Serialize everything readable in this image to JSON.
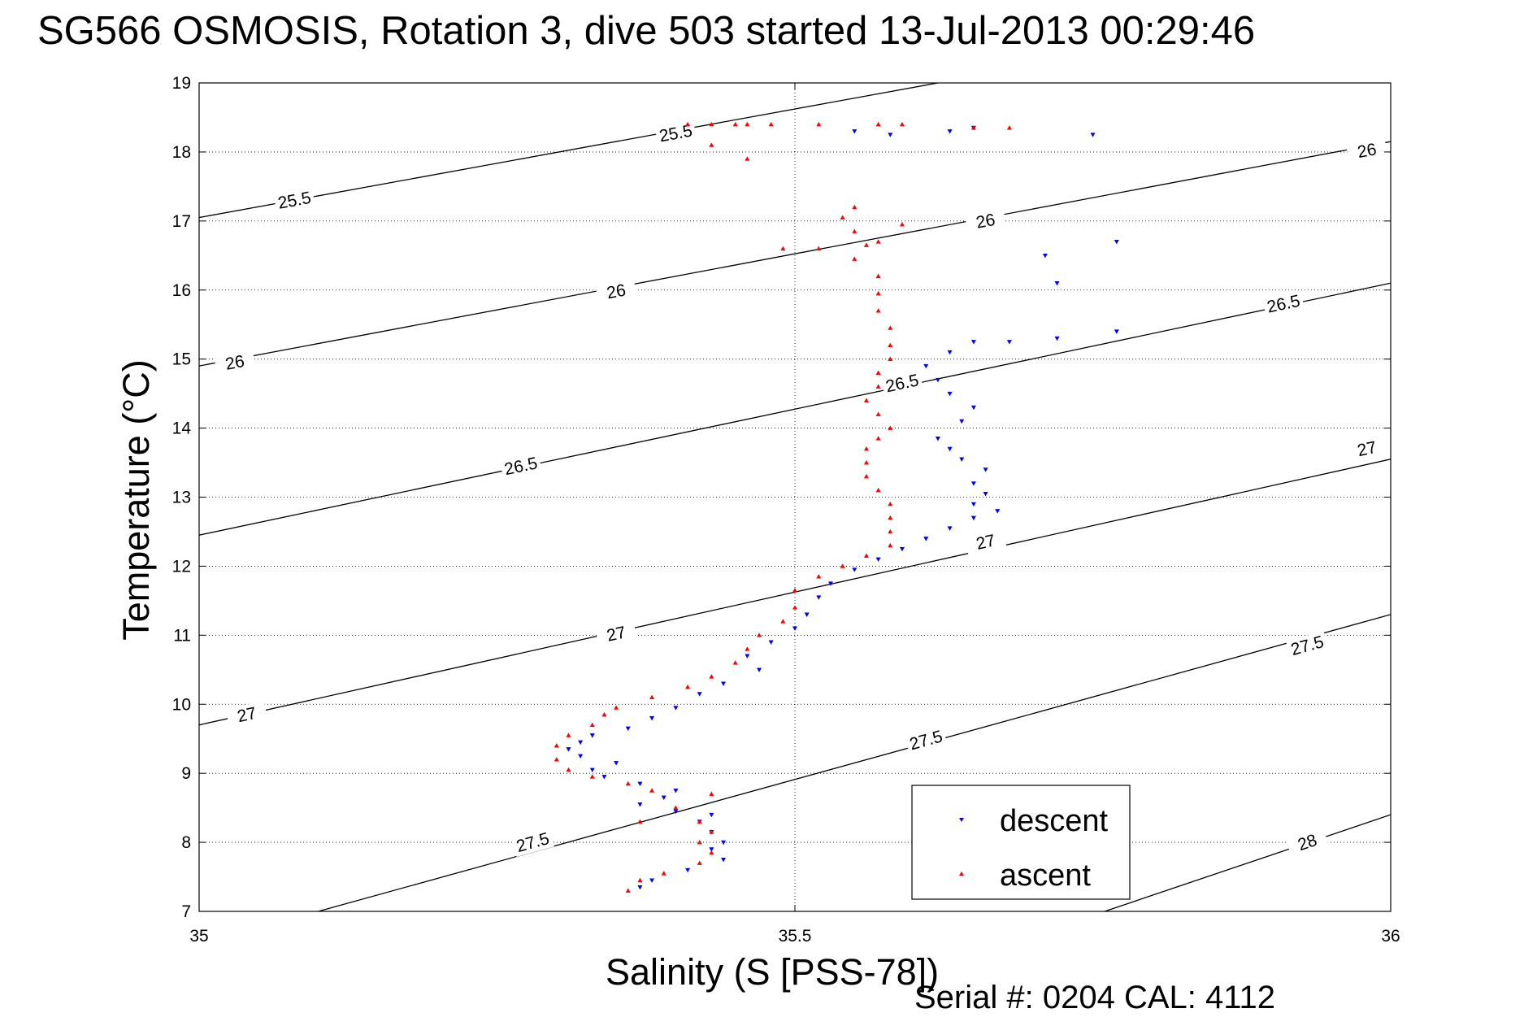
{
  "title": "SG566 OSMOSIS, Rotation 3, dive 503 started 13-Jul-2013 00:29:46",
  "footer": "Serial #: 0204  CAL: 4112",
  "chart_data": {
    "type": "scatter",
    "title": "SG566 OSMOSIS, Rotation 3, dive 503 started 13-Jul-2013 00:29:46",
    "xlabel": "Salinity (S [PSS-78])",
    "ylabel": "Temperature (°C)",
    "xlim": [
      35,
      36
    ],
    "ylim": [
      7,
      19
    ],
    "xticks": [
      "35",
      "35.5",
      "36"
    ],
    "yticks": [
      "7",
      "8",
      "9",
      "10",
      "11",
      "12",
      "13",
      "14",
      "15",
      "16",
      "17",
      "18",
      "19"
    ],
    "grid": true,
    "legend_position": "bottom-right",
    "isopycnals": [
      {
        "label": "25.5",
        "points": [
          [
            35.0,
            17.05
          ],
          [
            35.62,
            19.0
          ]
        ],
        "labels_at": [
          [
            35.08,
            17.3
          ],
          [
            35.4,
            18.27
          ]
        ]
      },
      {
        "label": "26",
        "points": [
          [
            35.0,
            14.9
          ],
          [
            36.0,
            18.15
          ]
        ],
        "labels_at": [
          [
            35.03,
            14.95
          ],
          [
            35.35,
            15.98
          ],
          [
            35.66,
            17.0
          ],
          [
            35.98,
            18.02
          ]
        ]
      },
      {
        "label": "26.5",
        "points": [
          [
            35.0,
            12.45
          ],
          [
            36.0,
            16.1
          ]
        ],
        "labels_at": [
          [
            35.27,
            13.45
          ],
          [
            35.59,
            14.65
          ],
          [
            35.91,
            15.8
          ]
        ]
      },
      {
        "label": "27",
        "points": [
          [
            35.0,
            9.7
          ],
          [
            36.0,
            13.55
          ]
        ],
        "labels_at": [
          [
            35.04,
            9.85
          ],
          [
            35.35,
            11.02
          ],
          [
            35.66,
            12.35
          ],
          [
            35.98,
            13.7
          ]
        ]
      },
      {
        "label": "27.5",
        "points": [
          [
            35.1,
            7.0
          ],
          [
            36.0,
            11.3
          ]
        ],
        "labels_at": [
          [
            35.28,
            8.0
          ],
          [
            35.61,
            9.48
          ],
          [
            35.93,
            10.85
          ]
        ]
      },
      {
        "label": "28",
        "points": [
          [
            35.76,
            7.0
          ],
          [
            36.0,
            8.4
          ]
        ],
        "labels_at": [
          [
            35.93,
            8.0
          ]
        ]
      }
    ],
    "series": [
      {
        "name": "descent",
        "color": "#0000ff",
        "marker": "triangle-down",
        "points": [
          [
            35.37,
            7.35
          ],
          [
            35.38,
            7.45
          ],
          [
            35.41,
            7.6
          ],
          [
            35.44,
            7.75
          ],
          [
            35.43,
            7.9
          ],
          [
            35.44,
            8.0
          ],
          [
            35.43,
            8.15
          ],
          [
            35.42,
            8.3
          ],
          [
            35.43,
            8.4
          ],
          [
            35.4,
            8.45
          ],
          [
            35.37,
            8.55
          ],
          [
            35.39,
            8.65
          ],
          [
            35.4,
            8.75
          ],
          [
            35.37,
            8.85
          ],
          [
            35.34,
            8.95
          ],
          [
            35.33,
            9.05
          ],
          [
            35.35,
            9.15
          ],
          [
            35.32,
            9.25
          ],
          [
            35.31,
            9.35
          ],
          [
            35.32,
            9.45
          ],
          [
            35.33,
            9.55
          ],
          [
            35.36,
            9.65
          ],
          [
            35.38,
            9.8
          ],
          [
            35.4,
            9.95
          ],
          [
            35.42,
            10.15
          ],
          [
            35.44,
            10.3
          ],
          [
            35.47,
            10.5
          ],
          [
            35.46,
            10.7
          ],
          [
            35.48,
            10.9
          ],
          [
            35.5,
            11.1
          ],
          [
            35.51,
            11.3
          ],
          [
            35.52,
            11.55
          ],
          [
            35.53,
            11.75
          ],
          [
            35.55,
            11.95
          ],
          [
            35.57,
            12.1
          ],
          [
            35.59,
            12.25
          ],
          [
            35.61,
            12.4
          ],
          [
            35.63,
            12.55
          ],
          [
            35.65,
            12.7
          ],
          [
            35.67,
            12.8
          ],
          [
            35.65,
            12.9
          ],
          [
            35.66,
            13.05
          ],
          [
            35.65,
            13.2
          ],
          [
            35.66,
            13.4
          ],
          [
            35.64,
            13.55
          ],
          [
            35.63,
            13.7
          ],
          [
            35.62,
            13.85
          ],
          [
            35.64,
            14.1
          ],
          [
            35.65,
            14.3
          ],
          [
            35.63,
            14.5
          ],
          [
            35.62,
            14.7
          ],
          [
            35.61,
            14.9
          ],
          [
            35.63,
            15.1
          ],
          [
            35.65,
            15.25
          ],
          [
            35.68,
            15.25
          ],
          [
            35.72,
            15.3
          ],
          [
            35.77,
            15.4
          ],
          [
            35.72,
            16.1
          ],
          [
            35.71,
            16.5
          ],
          [
            35.77,
            16.7
          ],
          [
            35.58,
            18.25
          ],
          [
            35.63,
            18.3
          ],
          [
            35.65,
            18.35
          ],
          [
            35.75,
            18.25
          ],
          [
            35.55,
            18.3
          ]
        ]
      },
      {
        "name": "ascent",
        "color": "#ff0000",
        "marker": "triangle-up",
        "points": [
          [
            35.36,
            7.3
          ],
          [
            35.37,
            7.45
          ],
          [
            35.39,
            7.55
          ],
          [
            35.42,
            7.7
          ],
          [
            35.43,
            7.85
          ],
          [
            35.42,
            8.0
          ],
          [
            35.43,
            8.15
          ],
          [
            35.42,
            8.3
          ],
          [
            35.37,
            8.3
          ],
          [
            35.4,
            8.5
          ],
          [
            35.43,
            8.7
          ],
          [
            35.38,
            8.75
          ],
          [
            35.36,
            8.85
          ],
          [
            35.33,
            8.95
          ],
          [
            35.31,
            9.05
          ],
          [
            35.3,
            9.2
          ],
          [
            35.3,
            9.4
          ],
          [
            35.31,
            9.55
          ],
          [
            35.33,
            9.7
          ],
          [
            35.34,
            9.85
          ],
          [
            35.35,
            9.95
          ],
          [
            35.38,
            10.1
          ],
          [
            35.41,
            10.25
          ],
          [
            35.43,
            10.4
          ],
          [
            35.45,
            10.6
          ],
          [
            35.46,
            10.8
          ],
          [
            35.47,
            11.0
          ],
          [
            35.49,
            11.2
          ],
          [
            35.5,
            11.4
          ],
          [
            35.5,
            11.65
          ],
          [
            35.52,
            11.85
          ],
          [
            35.54,
            12.0
          ],
          [
            35.56,
            12.15
          ],
          [
            35.58,
            12.3
          ],
          [
            35.58,
            12.5
          ],
          [
            35.58,
            12.7
          ],
          [
            35.58,
            12.9
          ],
          [
            35.57,
            13.1
          ],
          [
            35.56,
            13.3
          ],
          [
            35.56,
            13.5
          ],
          [
            35.56,
            13.7
          ],
          [
            35.57,
            13.85
          ],
          [
            35.58,
            14.0
          ],
          [
            35.57,
            14.2
          ],
          [
            35.56,
            14.4
          ],
          [
            35.57,
            14.6
          ],
          [
            35.57,
            14.8
          ],
          [
            35.58,
            15.0
          ],
          [
            35.58,
            15.2
          ],
          [
            35.58,
            15.45
          ],
          [
            35.57,
            15.7
          ],
          [
            35.57,
            15.95
          ],
          [
            35.57,
            16.2
          ],
          [
            35.55,
            16.45
          ],
          [
            35.56,
            16.65
          ],
          [
            35.55,
            16.85
          ],
          [
            35.54,
            17.05
          ],
          [
            35.55,
            17.2
          ],
          [
            35.57,
            16.7
          ],
          [
            35.59,
            16.95
          ],
          [
            35.52,
            16.6
          ],
          [
            35.49,
            16.6
          ],
          [
            35.57,
            18.4
          ],
          [
            35.59,
            18.4
          ],
          [
            35.52,
            18.4
          ],
          [
            35.48,
            18.4
          ],
          [
            35.45,
            18.4
          ],
          [
            35.43,
            18.4
          ],
          [
            35.46,
            18.4
          ],
          [
            35.41,
            18.4
          ],
          [
            35.43,
            18.1
          ],
          [
            35.46,
            17.9
          ],
          [
            35.65,
            18.35
          ],
          [
            35.68,
            18.35
          ]
        ]
      }
    ]
  }
}
